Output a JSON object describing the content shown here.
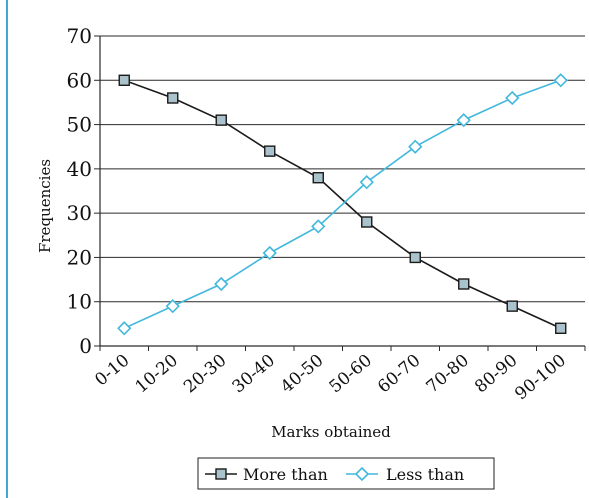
{
  "chart_data": {
    "type": "line",
    "categories": [
      "0-10",
      "10-20",
      "20-30",
      "30-40",
      "40-50",
      "50-60",
      "60-70",
      "70-80",
      "80-90",
      "90-100"
    ],
    "series": [
      {
        "name": "More than",
        "values": [
          60,
          56,
          51,
          44,
          38,
          28,
          20,
          14,
          9,
          4
        ],
        "color": "#1a1a1a",
        "marker": "square",
        "marker_fill": "#a9c2cc"
      },
      {
        "name": "Less than",
        "values": [
          4,
          9,
          14,
          21,
          27,
          37,
          45,
          51,
          56,
          60
        ],
        "color": "#41b8dc",
        "marker": "diamond",
        "marker_fill": "#ffffff"
      }
    ],
    "yticks": [
      "0",
      "10",
      "20",
      "30",
      "40",
      "50",
      "60",
      "70"
    ],
    "ylim": [
      0,
      70
    ],
    "xlabel": "Marks obtained",
    "ylabel": "Frequencies",
    "grid": true,
    "legend_position": "bottom"
  }
}
